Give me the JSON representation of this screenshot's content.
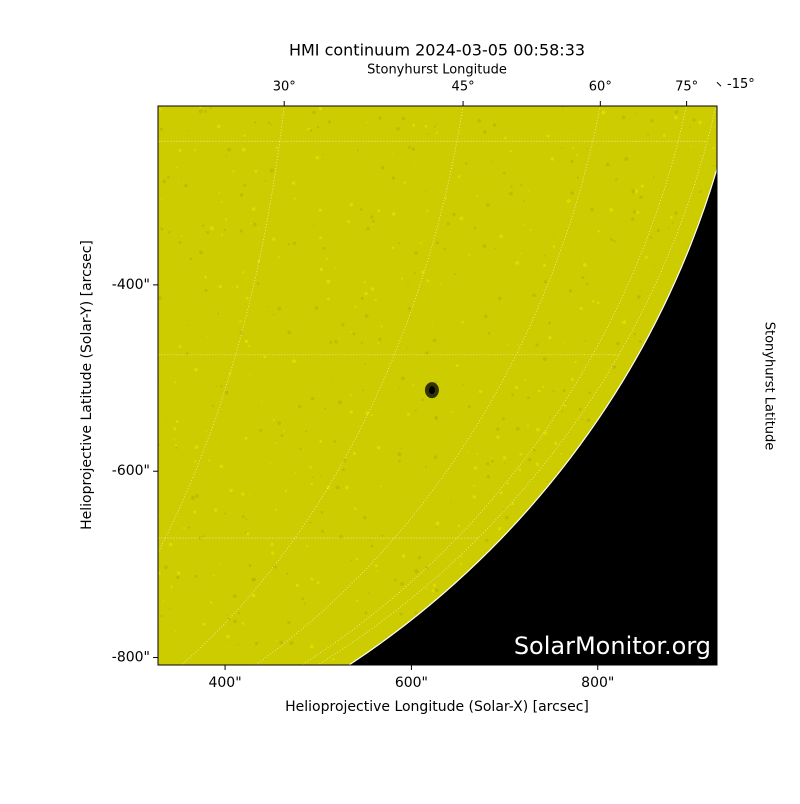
{
  "chart_data": {
    "type": "image",
    "title": "HMI continuum 2024-03-05 00:58:33",
    "x_label": "Helioprojective Longitude (Solar-X) [arcsec]",
    "y_label": "Helioprojective Latitude (Solar-Y) [arcsec]",
    "top_label": "Stonyhurst Longitude",
    "right_label": "Stonyhurst Latitude",
    "watermark": "SolarMonitor.org",
    "xlim": [
      328,
      928
    ],
    "ylim": [
      -808,
      -208
    ],
    "xticks": [
      {
        "value": 400,
        "label": "400\""
      },
      {
        "value": 600,
        "label": "600\""
      },
      {
        "value": 800,
        "label": "800\""
      }
    ],
    "yticks": [
      {
        "value": -400,
        "label": "-400\""
      },
      {
        "value": -600,
        "label": "-600\""
      },
      {
        "value": -800,
        "label": "-800\""
      }
    ],
    "top_ticks": [
      {
        "value": 30,
        "label": "30°"
      },
      {
        "value": 45,
        "label": "45°"
      },
      {
        "value": 60,
        "label": "60°"
      },
      {
        "value": 75,
        "label": "75°"
      }
    ],
    "right_ticks": [
      {
        "value": -15,
        "label": "-15°"
      }
    ],
    "color": "#cccc00"
  }
}
